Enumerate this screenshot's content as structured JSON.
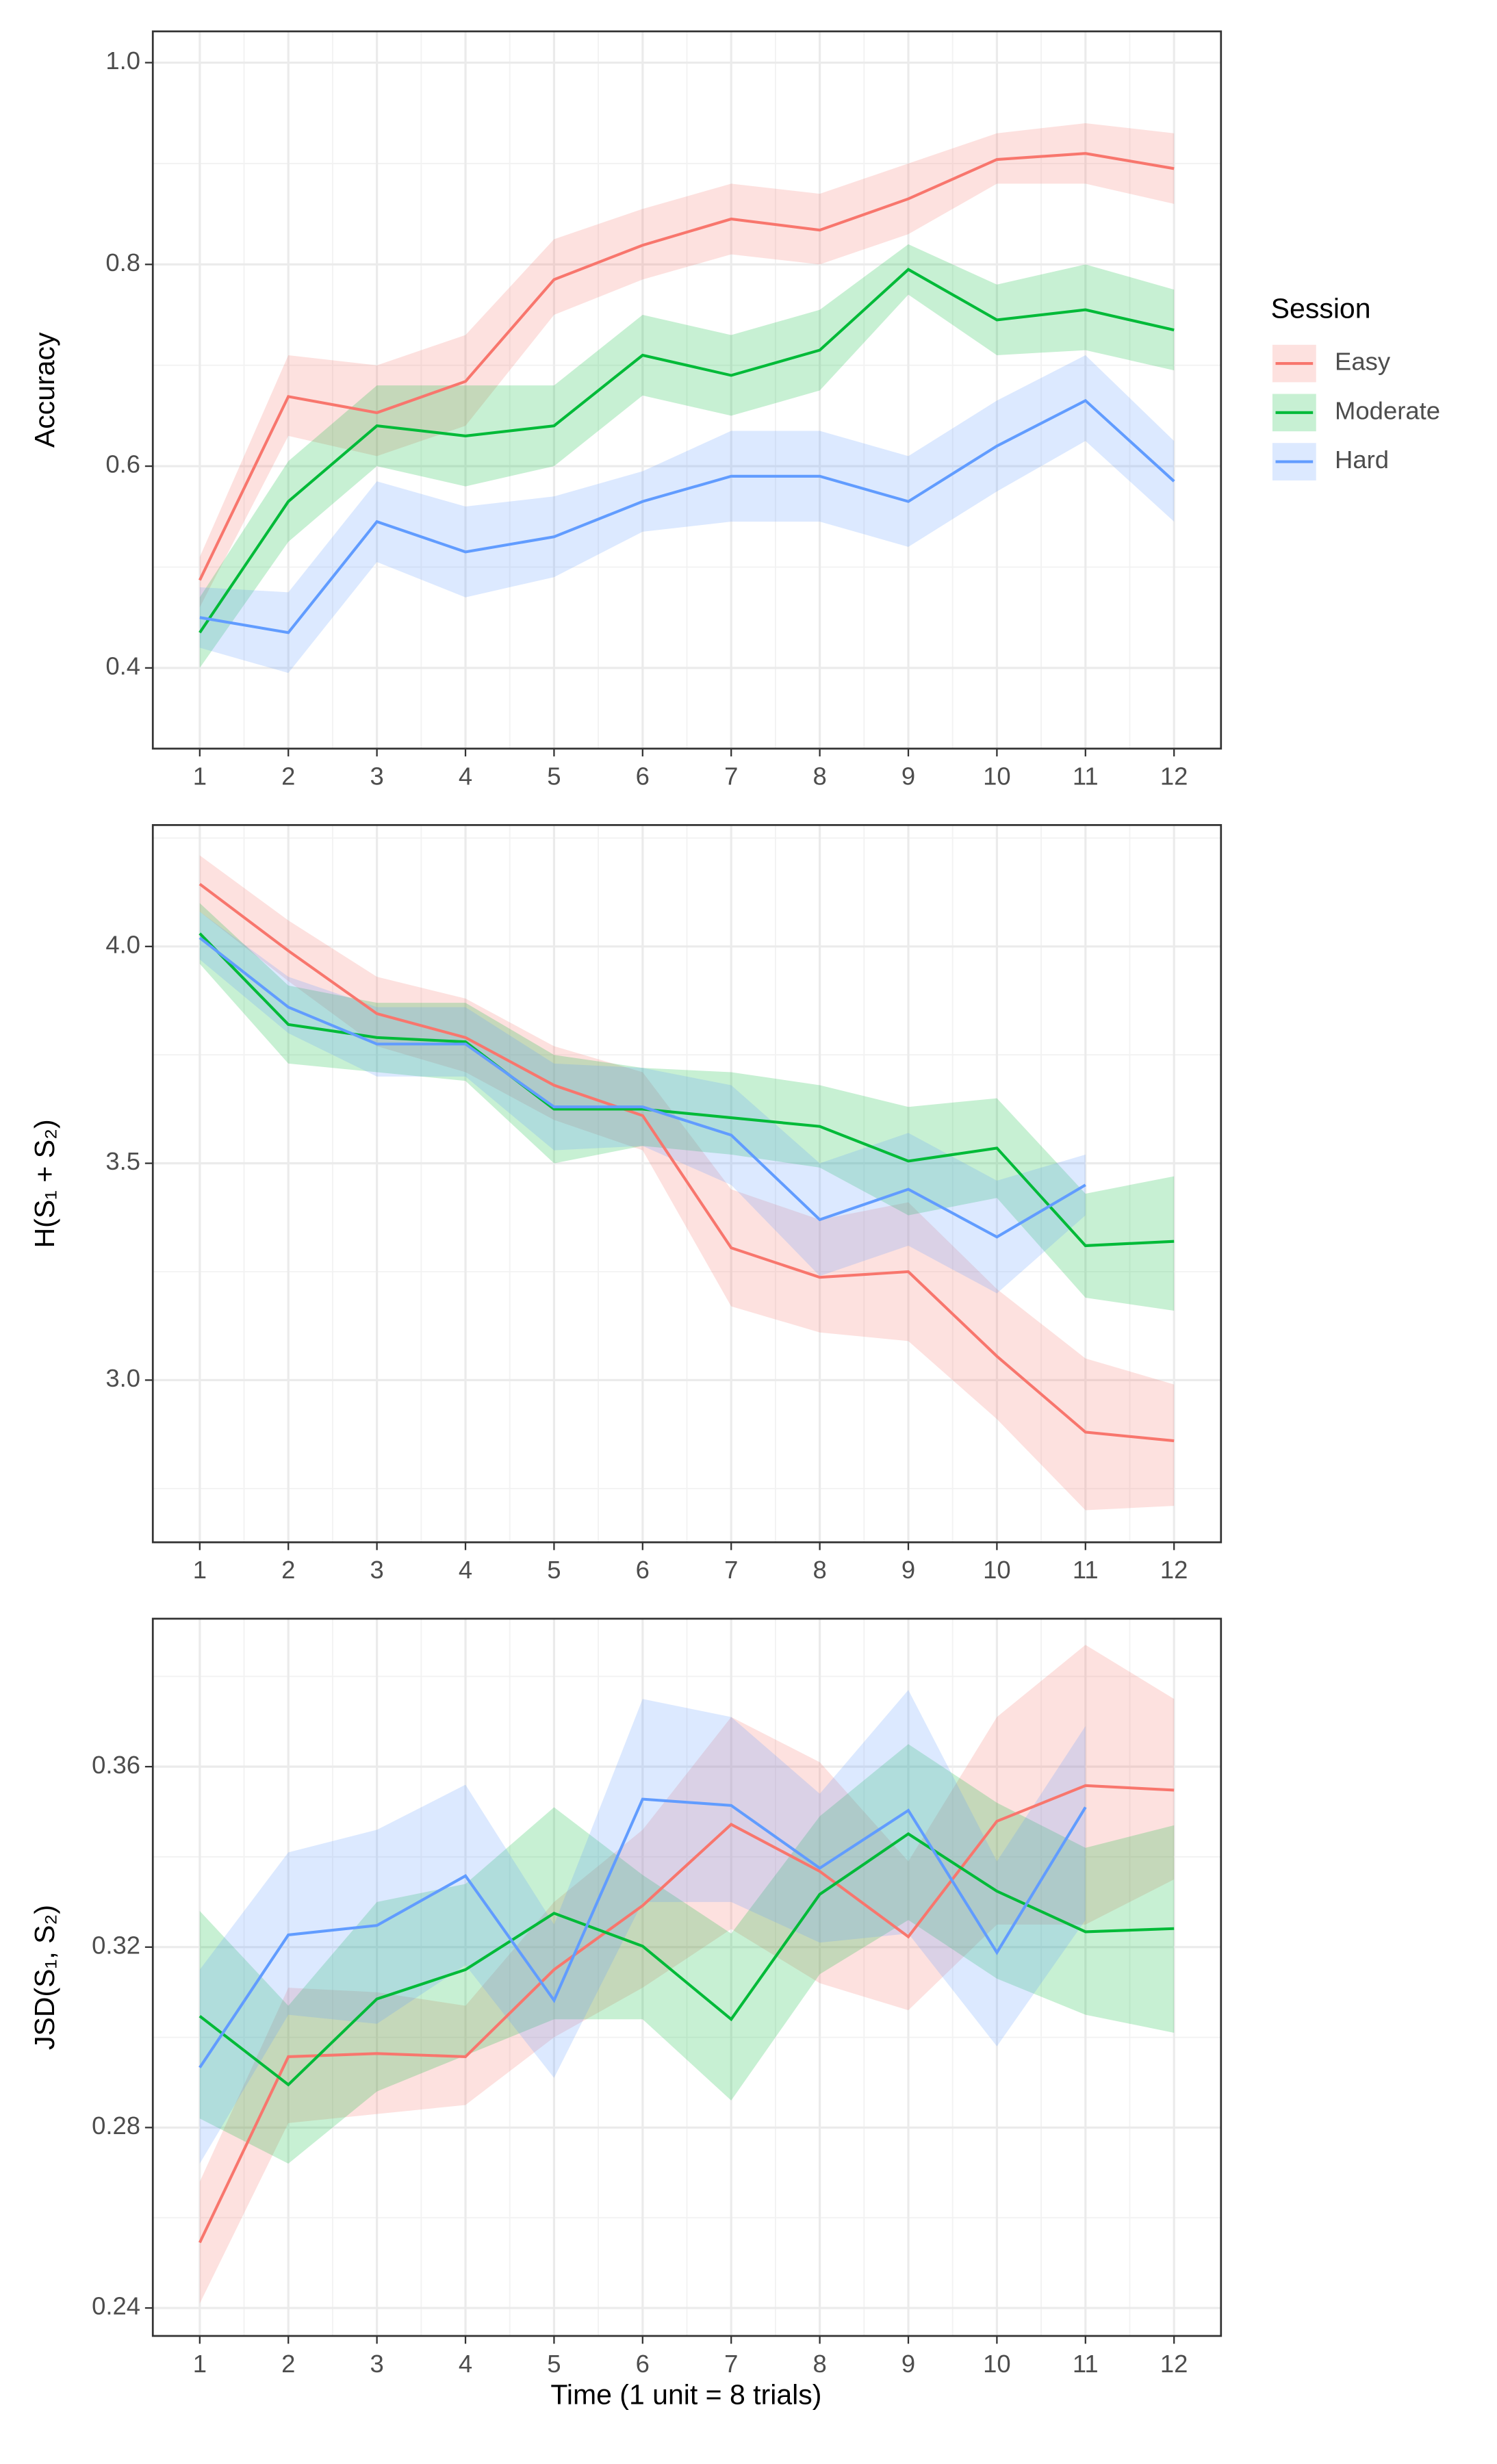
{
  "legend": {
    "title": "Session"
  },
  "x_label": "Time (1 unit = 8 trials)",
  "chart_data": [
    {
      "type": "line",
      "ylabel": "Accuracy",
      "xlim": [
        0.47,
        12.53
      ],
      "ylim": [
        0.32,
        1.031
      ],
      "x": [
        1,
        2,
        3,
        4,
        5,
        6,
        7,
        8,
        9,
        10,
        11,
        12
      ],
      "xticks": [
        1,
        2,
        3,
        4,
        5,
        6,
        7,
        8,
        9,
        10,
        11,
        12
      ],
      "yticks": [
        0.4,
        0.6,
        0.8,
        {
          "value": 1.0,
          "label": "1.0"
        }
      ],
      "grid": true,
      "series": [
        {
          "name": "Easy",
          "color": "#F8766D",
          "values": [
            0.487,
            0.669,
            0.653,
            0.684,
            0.785,
            0.819,
            0.845,
            0.834,
            0.865,
            0.904,
            0.91,
            0.895
          ],
          "lower": [
            0.46,
            0.63,
            0.61,
            0.64,
            0.75,
            0.785,
            0.81,
            0.8,
            0.83,
            0.88,
            0.88,
            0.86
          ],
          "upper": [
            0.51,
            0.71,
            0.7,
            0.73,
            0.825,
            0.855,
            0.88,
            0.87,
            0.9,
            0.93,
            0.94,
            0.93
          ]
        },
        {
          "name": "Moderate",
          "color": "#00BA38",
          "values": [
            0.435,
            0.565,
            0.64,
            0.63,
            0.64,
            0.71,
            0.69,
            0.715,
            0.795,
            0.745,
            0.755,
            0.735
          ],
          "lower": [
            0.4,
            0.525,
            0.6,
            0.58,
            0.6,
            0.67,
            0.65,
            0.675,
            0.77,
            0.71,
            0.715,
            0.695
          ],
          "upper": [
            0.47,
            0.605,
            0.68,
            0.68,
            0.68,
            0.75,
            0.73,
            0.755,
            0.82,
            0.78,
            0.8,
            0.775
          ]
        },
        {
          "name": "Hard",
          "color": "#619CFF",
          "values": [
            0.45,
            0.435,
            0.545,
            0.515,
            0.53,
            0.565,
            0.59,
            0.59,
            0.565,
            0.62,
            0.665,
            0.585
          ],
          "lower": [
            0.42,
            0.395,
            0.505,
            0.47,
            0.49,
            0.535,
            0.545,
            0.545,
            0.52,
            0.575,
            0.625,
            0.545
          ],
          "upper": [
            0.48,
            0.475,
            0.585,
            0.56,
            0.57,
            0.595,
            0.635,
            0.635,
            0.61,
            0.665,
            0.71,
            0.625
          ]
        }
      ]
    },
    {
      "type": "line",
      "ylabel": "H(S₁ + S₂)",
      "xlim": [
        0.47,
        12.53
      ],
      "ylim": [
        2.626,
        4.28
      ],
      "x": [
        1,
        2,
        3,
        4,
        5,
        6,
        7,
        8,
        9,
        10,
        11,
        12
      ],
      "xticks": [
        1,
        2,
        3,
        4,
        5,
        6,
        7,
        8,
        9,
        10,
        11,
        12
      ],
      "yticks": [
        {
          "value": 3.0,
          "label": "3.0"
        },
        3.5,
        {
          "value": 4.0,
          "label": "4.0"
        }
      ],
      "grid": true,
      "series": [
        {
          "color": "#F8766D",
          "values": [
            4.144,
            3.99,
            3.845,
            3.79,
            3.68,
            3.61,
            3.305,
            3.237,
            3.25,
            3.055,
            2.88,
            2.86
          ],
          "lower": [
            4.08,
            3.92,
            3.77,
            3.71,
            3.6,
            3.53,
            3.17,
            3.11,
            3.09,
            2.91,
            2.7,
            2.71
          ],
          "upper": [
            4.21,
            4.06,
            3.93,
            3.88,
            3.77,
            3.71,
            3.44,
            3.37,
            3.41,
            3.21,
            3.05,
            2.99
          ]
        },
        {
          "color": "#00BA38",
          "values": [
            4.03,
            3.82,
            3.79,
            3.78,
            3.625,
            3.625,
            3.605,
            3.585,
            3.505,
            3.535,
            3.31,
            3.32
          ],
          "lower": [
            3.96,
            3.73,
            3.71,
            3.69,
            3.5,
            3.54,
            3.52,
            3.49,
            3.38,
            3.42,
            3.19,
            3.16
          ],
          "upper": [
            4.1,
            3.91,
            3.87,
            3.87,
            3.75,
            3.72,
            3.71,
            3.68,
            3.63,
            3.65,
            3.43,
            3.47
          ]
        },
        {
          "color": "#619CFF",
          "values": [
            4.02,
            3.86,
            3.775,
            3.775,
            3.63,
            3.63,
            3.565,
            3.37,
            3.44,
            3.33,
            3.45,
            null
          ],
          "lower": [
            3.97,
            3.8,
            3.7,
            3.7,
            3.53,
            3.54,
            3.45,
            3.24,
            3.31,
            3.2,
            3.38,
            null
          ],
          "upper": [
            4.08,
            3.93,
            3.86,
            3.86,
            3.73,
            3.72,
            3.68,
            3.5,
            3.57,
            3.46,
            3.52,
            null
          ]
        }
      ]
    },
    {
      "type": "line",
      "ylabel": "JSD(S₁, S₂)",
      "xlim": [
        0.47,
        12.53
      ],
      "ylim": [
        0.2338,
        0.3928
      ],
      "x": [
        1,
        2,
        3,
        4,
        5,
        6,
        7,
        8,
        9,
        10,
        11,
        12
      ],
      "xticks": [
        1,
        2,
        3,
        4,
        5,
        6,
        7,
        8,
        9,
        10,
        11,
        12
      ],
      "yticks": [
        0.24,
        0.28,
        0.32,
        0.36
      ],
      "grid": true,
      "series": [
        {
          "color": "#F8766D",
          "values": [
            0.2545,
            0.2957,
            0.2964,
            0.2957,
            0.315,
            0.3292,
            0.3472,
            0.3368,
            0.3223,
            0.3479,
            0.3558,
            0.3548
          ],
          "lower": [
            0.241,
            0.281,
            0.283,
            0.285,
            0.3,
            0.311,
            0.324,
            0.312,
            0.306,
            0.325,
            0.325,
            0.335
          ],
          "upper": [
            0.268,
            0.311,
            0.31,
            0.307,
            0.33,
            0.346,
            0.371,
            0.361,
            0.339,
            0.371,
            0.387,
            0.375
          ]
        },
        {
          "color": "#00BA38",
          "values": [
            0.3047,
            0.2895,
            0.3085,
            0.315,
            0.3275,
            0.3202,
            0.304,
            0.3317,
            0.3451,
            0.3324,
            0.3234,
            0.3241
          ],
          "lower": [
            0.282,
            0.272,
            0.288,
            0.296,
            0.304,
            0.304,
            0.286,
            0.314,
            0.326,
            0.313,
            0.305,
            0.301
          ],
          "upper": [
            0.328,
            0.307,
            0.33,
            0.334,
            0.351,
            0.336,
            0.323,
            0.349,
            0.365,
            0.352,
            0.342,
            0.347
          ]
        },
        {
          "color": "#619CFF",
          "values": [
            0.2933,
            0.3227,
            0.3248,
            0.3358,
            0.3082,
            0.3528,
            0.3514,
            0.3375,
            0.3503,
            0.3188,
            0.351,
            null
          ],
          "lower": [
            0.272,
            0.305,
            0.303,
            0.316,
            0.291,
            0.33,
            0.33,
            0.321,
            0.323,
            0.298,
            0.326,
            null
          ],
          "upper": [
            0.315,
            0.341,
            0.346,
            0.356,
            0.325,
            0.375,
            0.371,
            0.354,
            0.377,
            0.339,
            0.369,
            null
          ]
        }
      ]
    }
  ]
}
